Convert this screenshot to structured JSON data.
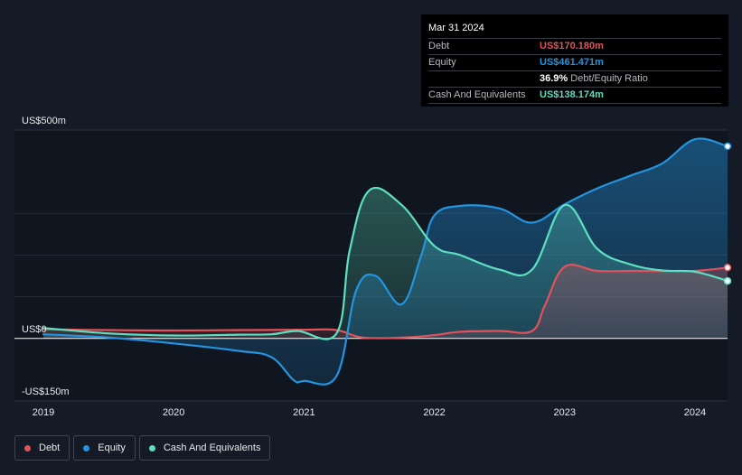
{
  "chart_data": {
    "type": "area",
    "title": "",
    "y_unit_prefix": "US$",
    "ylim": [
      -150,
      500
    ],
    "yticks": [
      {
        "value": 500,
        "label": "US$500m"
      },
      {
        "value": 0,
        "label": "US$0"
      },
      {
        "value": -150,
        "label": "-US$150m"
      }
    ],
    "xlim": [
      2019.0,
      2024.25
    ],
    "xticks": [
      {
        "value": 2019,
        "label": "2019"
      },
      {
        "value": 2020,
        "label": "2020"
      },
      {
        "value": 2021,
        "label": "2021"
      },
      {
        "value": 2022,
        "label": "2022"
      },
      {
        "value": 2023,
        "label": "2023"
      },
      {
        "value": 2024,
        "label": "2024"
      }
    ],
    "series": [
      {
        "name": "Debt",
        "key": "debt",
        "color": "#e2525b",
        "points": [
          [
            2019.0,
            22
          ],
          [
            2019.5,
            20
          ],
          [
            2020.0,
            19
          ],
          [
            2020.5,
            20
          ],
          [
            2021.0,
            21
          ],
          [
            2021.25,
            20
          ],
          [
            2021.45,
            2
          ],
          [
            2021.75,
            2
          ],
          [
            2022.0,
            8
          ],
          [
            2022.2,
            16
          ],
          [
            2022.5,
            18
          ],
          [
            2022.75,
            18
          ],
          [
            2022.85,
            80
          ],
          [
            2023.0,
            172
          ],
          [
            2023.25,
            162
          ],
          [
            2023.5,
            162
          ],
          [
            2023.75,
            162
          ],
          [
            2024.0,
            162
          ],
          [
            2024.25,
            170
          ]
        ]
      },
      {
        "name": "Equity",
        "key": "equity",
        "color": "#2394df",
        "points": [
          [
            2019.0,
            10
          ],
          [
            2019.5,
            2
          ],
          [
            2020.0,
            -12
          ],
          [
            2020.5,
            -30
          ],
          [
            2020.75,
            -45
          ],
          [
            2020.92,
            -100
          ],
          [
            2021.0,
            -102
          ],
          [
            2021.25,
            -90
          ],
          [
            2021.4,
            115
          ],
          [
            2021.55,
            150
          ],
          [
            2021.75,
            82
          ],
          [
            2021.9,
            200
          ],
          [
            2022.0,
            295
          ],
          [
            2022.2,
            318
          ],
          [
            2022.5,
            312
          ],
          [
            2022.75,
            278
          ],
          [
            2023.0,
            322
          ],
          [
            2023.25,
            360
          ],
          [
            2023.5,
            390
          ],
          [
            2023.75,
            420
          ],
          [
            2024.0,
            478
          ],
          [
            2024.25,
            461
          ]
        ]
      },
      {
        "name": "Cash And Equivalents",
        "key": "cash",
        "color": "#5ddfc1",
        "points": [
          [
            2019.0,
            25
          ],
          [
            2019.5,
            12
          ],
          [
            2020.0,
            7
          ],
          [
            2020.5,
            9
          ],
          [
            2020.75,
            10
          ],
          [
            2020.95,
            18
          ],
          [
            2021.25,
            12
          ],
          [
            2021.35,
            210
          ],
          [
            2021.5,
            355
          ],
          [
            2021.75,
            320
          ],
          [
            2022.0,
            222
          ],
          [
            2022.2,
            200
          ],
          [
            2022.5,
            165
          ],
          [
            2022.75,
            165
          ],
          [
            2023.0,
            320
          ],
          [
            2023.25,
            215
          ],
          [
            2023.5,
            178
          ],
          [
            2023.75,
            163
          ],
          [
            2024.0,
            160
          ],
          [
            2024.25,
            138
          ]
        ]
      }
    ]
  },
  "tooltip": {
    "date": "Mar 31 2024",
    "debt_label": "Debt",
    "debt_value": "US$170.180m",
    "equity_label": "Equity",
    "equity_value": "US$461.471m",
    "ratio_value": "36.9%",
    "ratio_label": "Debt/Equity Ratio",
    "cash_label": "Cash And Equivalents",
    "cash_value": "US$138.174m"
  },
  "legend": [
    {
      "label": "Debt",
      "color": "#e2525b"
    },
    {
      "label": "Equity",
      "color": "#2394df"
    },
    {
      "label": "Cash And Equivalents",
      "color": "#5ddfc1"
    }
  ]
}
